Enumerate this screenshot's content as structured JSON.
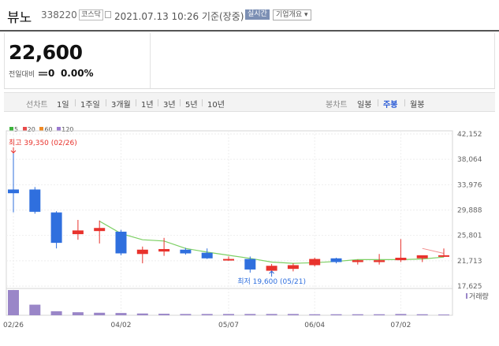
{
  "header": {
    "name": "뷰노",
    "code": "338220",
    "market_badge": "코스닥",
    "timestamp": "2021.07.13 10:26 기준(장중)",
    "realtime_badge": "실시간",
    "company_info": "기업개요 ▾"
  },
  "price": {
    "current": "22,600",
    "change_label": "전일대비",
    "change_value": "0",
    "change_percent": "0.00%"
  },
  "period_bar": {
    "line_label": "선차트",
    "line_items": [
      "1일",
      "1주일",
      "3개월",
      "1년",
      "3년",
      "5년",
      "10년"
    ],
    "candle_label": "봉차트",
    "candle_items": [
      "일봉",
      "주봉",
      "월봉"
    ],
    "candle_active": "주봉"
  },
  "legend": [
    {
      "label": "5",
      "color": "#3cb33c"
    },
    {
      "label": "20",
      "color": "#e84a4a"
    },
    {
      "label": "60",
      "color": "#f08a24"
    },
    {
      "label": "120",
      "color": "#9a7ad0"
    }
  ],
  "colors": {
    "up": "#e8322c",
    "down": "#2f6fde",
    "ma5": "#7ccf63",
    "ma20": "#f28a8a",
    "volume": "#9a86c8"
  },
  "chart_data": {
    "type": "candlestick",
    "interval": "weekly",
    "y_ticks": [
      42152,
      38064,
      33976,
      29888,
      25801,
      21713,
      17625
    ],
    "ylim": [
      17625,
      42152
    ],
    "x_tick_labels": [
      "02/26",
      "04/02",
      "05/07",
      "06/04",
      "07/02"
    ],
    "x_tick_index": [
      0,
      5,
      10,
      14,
      18
    ],
    "high_annotation": "최고 39,350 (02/26)",
    "low_annotation": "최저 19,600 (05/21)",
    "volume_label": "거래량",
    "candles": [
      {
        "o": 33200,
        "h": 39350,
        "l": 29500,
        "c": 32600
      },
      {
        "o": 33200,
        "h": 33600,
        "l": 29300,
        "c": 29600
      },
      {
        "o": 29500,
        "h": 29700,
        "l": 23700,
        "c": 24600
      },
      {
        "o": 26000,
        "h": 28300,
        "l": 25100,
        "c": 26600
      },
      {
        "o": 26500,
        "h": 28200,
        "l": 24500,
        "c": 27000
      },
      {
        "o": 26400,
        "h": 26700,
        "l": 22600,
        "c": 22900
      },
      {
        "o": 22800,
        "h": 24000,
        "l": 21300,
        "c": 23500
      },
      {
        "o": 23200,
        "h": 25400,
        "l": 22500,
        "c": 23600
      },
      {
        "o": 23500,
        "h": 23800,
        "l": 22700,
        "c": 22900
      },
      {
        "o": 23000,
        "h": 23700,
        "l": 22000,
        "c": 22100
      },
      {
        "o": 21900,
        "h": 22400,
        "l": 21700,
        "c": 22000
      },
      {
        "o": 22000,
        "h": 22400,
        "l": 19800,
        "c": 20300
      },
      {
        "o": 20100,
        "h": 21200,
        "l": 19600,
        "c": 20900
      },
      {
        "o": 20400,
        "h": 21300,
        "l": 20000,
        "c": 21000
      },
      {
        "o": 21000,
        "h": 22200,
        "l": 20800,
        "c": 22000
      },
      {
        "o": 22100,
        "h": 22200,
        "l": 21300,
        "c": 21500
      },
      {
        "o": 21500,
        "h": 21900,
        "l": 21100,
        "c": 21800
      },
      {
        "o": 21500,
        "h": 22800,
        "l": 21100,
        "c": 21800
      },
      {
        "o": 21800,
        "h": 25200,
        "l": 21500,
        "c": 22200
      },
      {
        "o": 22100,
        "h": 22500,
        "l": 21500,
        "c": 22600
      },
      {
        "o": 22600,
        "h": 23700,
        "l": 22300,
        "c": 22600
      }
    ],
    "ma5": [
      null,
      null,
      null,
      null,
      28100,
      26100,
      25100,
      24900,
      23700,
      23100,
      22600,
      22100,
      21500,
      21300,
      21400,
      21600,
      21900,
      21900,
      21900,
      22000,
      22300
    ],
    "volume": [
      100,
      42,
      16,
      12,
      10,
      9,
      7,
      6,
      5,
      5,
      5,
      5,
      5,
      5,
      4,
      4,
      4,
      4,
      5,
      4,
      3
    ]
  }
}
